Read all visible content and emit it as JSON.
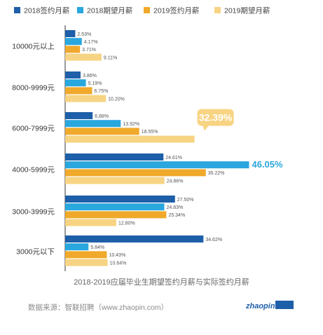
{
  "chart_data": {
    "type": "bar",
    "orientation": "horizontal",
    "categories": [
      "10000元以上",
      "8000-9999元",
      "6000-7999元",
      "4000-5999元",
      "3000-3999元",
      "3000元以下"
    ],
    "series": [
      {
        "name": "2018签约月薪",
        "color": "#1d5fa8",
        "values": [
          2.53,
          3.86,
          6.88,
          24.61,
          27.5,
          34.62
        ]
      },
      {
        "name": "2018期望月薪",
        "color": "#2aa7dd",
        "values": [
          4.17,
          5.19,
          13.92,
          46.05,
          24.83,
          5.84
        ]
      },
      {
        "name": "2019签约月薪",
        "color": "#f0a92a",
        "values": [
          3.71,
          6.75,
          18.55,
          35.22,
          25.34,
          10.43
        ]
      },
      {
        "name": "2019期望月薪",
        "color": "#f7d483",
        "values": [
          9.11,
          10.2,
          32.39,
          24.86,
          12.8,
          10.64
        ]
      }
    ],
    "value_labels": [
      [
        "2.53%",
        "4.17%",
        "3.71%",
        "9.11%"
      ],
      [
        "3.86%",
        "5.19%",
        "6.75%",
        "10.20%"
      ],
      [
        "6.88%",
        "13.92%",
        "18.55%",
        "32.39%"
      ],
      [
        "24.61%",
        "46.05%",
        "35.22%",
        "24.86%"
      ],
      [
        "27.50%",
        "24.83%",
        "25.34%",
        "12.80%"
      ],
      [
        "34.62%",
        "5.84%",
        "10.43%",
        "10.64%"
      ]
    ],
    "callouts": [
      {
        "category_index": 2,
        "series_index": 3,
        "text": "32.39%",
        "style": "bubble"
      },
      {
        "category_index": 3,
        "series_index": 1,
        "text": "46.05%",
        "style": "text"
      }
    ],
    "legend_position": "top",
    "xlim": [
      0,
      50
    ],
    "grid": false
  },
  "caption": "2018-2019应届毕业生期望签约月薪与实际签约月薪",
  "source": "数据来源：智联招聘（www.zhaopin.com）",
  "logo": {
    "text": "zhaopin.com",
    "brand": "智联招聘"
  }
}
